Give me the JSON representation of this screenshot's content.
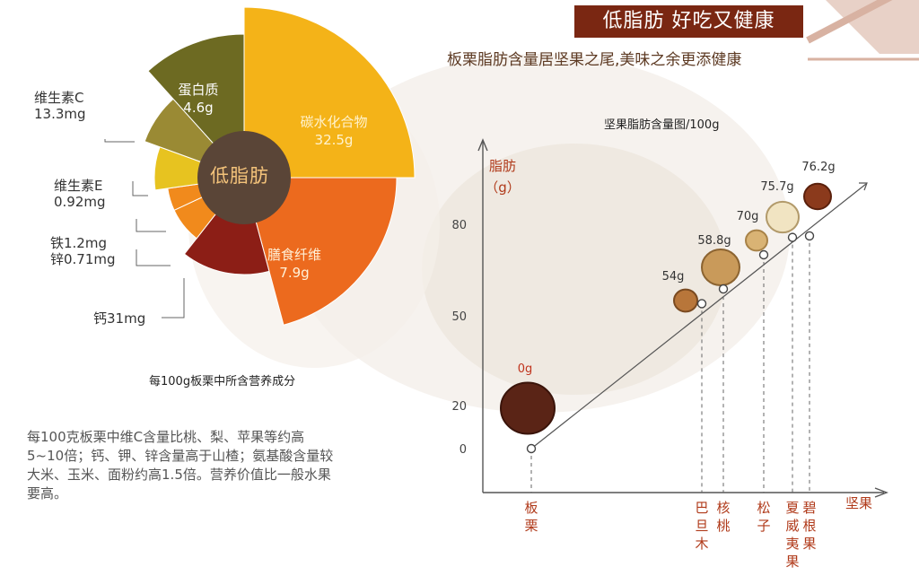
{
  "header": {
    "banner": "低脂肪 好吃又健康",
    "subtitle": "板栗脂肪含量居坚果之尾,美味之余更添健康"
  },
  "pie": {
    "center_label": "低脂肪",
    "caption": "每100g板栗中所含营养成分",
    "slices": [
      {
        "name": "碳水化合物",
        "value": "32.5g",
        "color": "#f4b318"
      },
      {
        "name": "膳食纤维",
        "value": "7.9g",
        "color": "#ec6a1e"
      },
      {
        "name": "钙",
        "value": "31mg",
        "color": "#8c1e16"
      },
      {
        "name": "铁",
        "value": "1.2mg",
        "color": "#f18a1c"
      },
      {
        "name": "锌",
        "value": "0.71mg",
        "color": "#f18a1c"
      },
      {
        "name": "维生素E",
        "value": "0.92mg",
        "color": "#e7c320"
      },
      {
        "name": "维生素C",
        "value": "13.3mg",
        "color": "#9a8a34"
      },
      {
        "name": "蛋白质",
        "value": "4.6g",
        "color": "#6d6a22"
      }
    ],
    "inner_labels": {
      "carb_name": "碳水化合物",
      "carb_value": "32.5g",
      "fiber_name": "膳食纤维",
      "fiber_value": "7.9g",
      "protein_name": "蛋白质",
      "protein_value": "4.6g"
    },
    "external_labels": {
      "vc_name": "维生素C",
      "vc_value": "13.3mg",
      "ve_name": "维生素E",
      "ve_value": "0.92mg",
      "iron": "铁1.2mg",
      "zinc": "锌0.71mg",
      "calcium": "钙31mg"
    }
  },
  "description": [
    "每100克板栗中维C含量比桃、梨、苹果等约高",
    "5~10倍；钙、钾、锌含量高于山楂；氨基酸含量较",
    "大米、玉米、面粉约高1.5倍。营养价值比一般水果",
    "要高。"
  ],
  "chart_data": {
    "type": "scatter",
    "title": "坚果脂肪含量图/100g",
    "ylabel": "脂肪（g）",
    "xlabel": "坚果",
    "yticks": [
      0,
      20,
      50,
      80
    ],
    "categories": [
      "板栗",
      "巴旦木",
      "核桃",
      "松子",
      "夏威夷果",
      "碧根果"
    ],
    "points": [
      {
        "x": "板栗",
        "label": "0g",
        "y": 0
      },
      {
        "x": "巴旦木",
        "label": "54g",
        "y": 54
      },
      {
        "x": "核桃",
        "label": "58.8g",
        "y": 58.8
      },
      {
        "x": "松子",
        "label": "70g",
        "y": 70
      },
      {
        "x": "夏威夷果",
        "label": "75.7g",
        "y": 75.7
      },
      {
        "x": "碧根果",
        "label": "76.2g",
        "y": 76.2
      }
    ],
    "colors": {
      "axis": "#555555",
      "label_red": "#c0341d",
      "line": "#555555"
    }
  }
}
